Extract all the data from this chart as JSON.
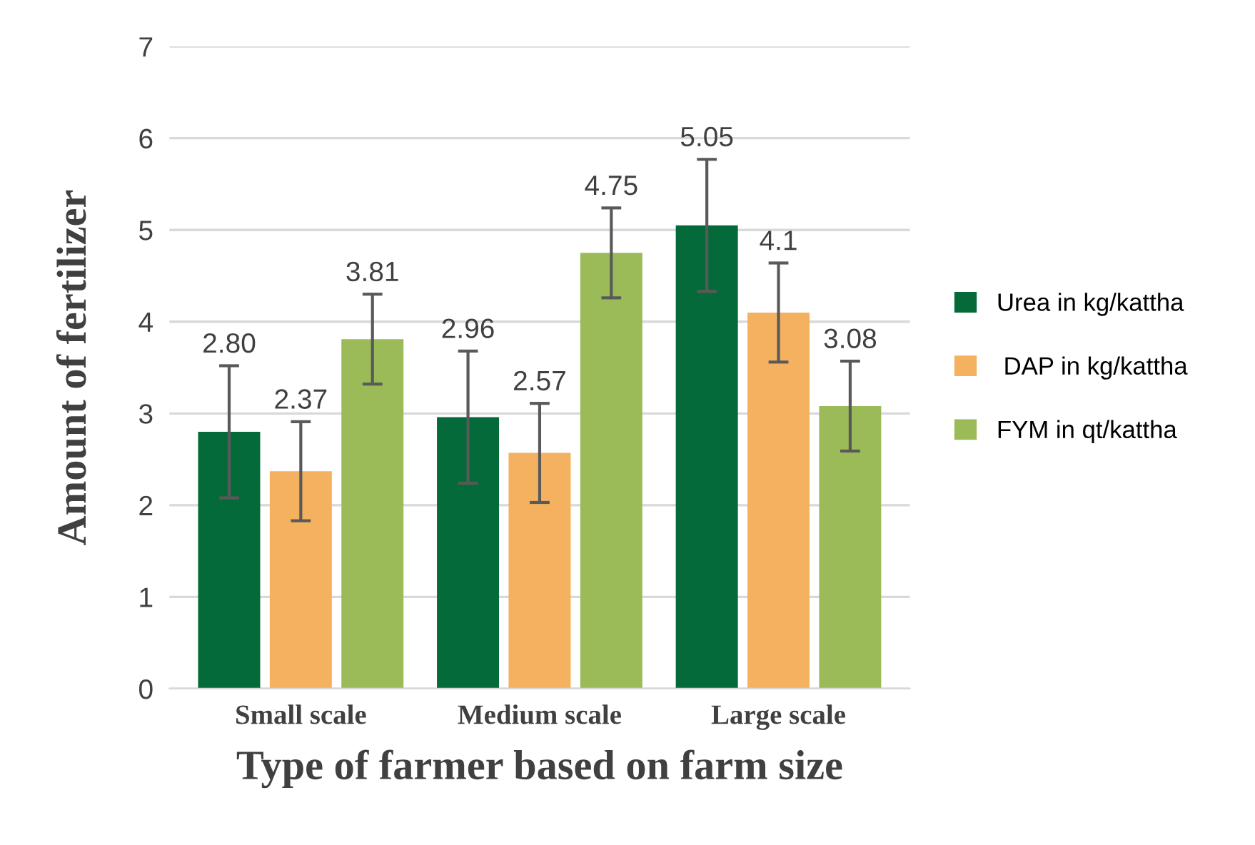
{
  "chart_data": {
    "type": "bar",
    "xlabel": "Type of farmer based on farm size",
    "ylabel": "Amount of fertilizer",
    "categories": [
      "Small scale",
      "Medium scale",
      "Large scale"
    ],
    "series": [
      {
        "name": "Urea in kg/kattha",
        "color": "#056a39",
        "values": [
          2.8,
          2.96,
          5.05
        ],
        "errors": [
          0.72,
          0.72,
          0.72
        ],
        "value_labels": [
          "2.80",
          "2.96",
          "5.05"
        ]
      },
      {
        "name": " DAP in kg/kattha",
        "color": "#f4b160",
        "values": [
          2.37,
          2.57,
          4.1
        ],
        "errors": [
          0.54,
          0.54,
          0.54
        ],
        "value_labels": [
          "2.37",
          "2.57",
          "4.1"
        ]
      },
      {
        "name": "FYM in qt/kattha",
        "color": "#9bbb59",
        "values": [
          3.81,
          4.75,
          3.08
        ],
        "errors": [
          0.49,
          0.49,
          0.49
        ],
        "value_labels": [
          "3.81",
          "4.75",
          "3.08"
        ]
      }
    ],
    "ylim": [
      0,
      7
    ],
    "yticks": [
      0,
      1,
      2,
      3,
      4,
      5,
      6,
      7
    ],
    "grid": "y",
    "legend": "right"
  }
}
